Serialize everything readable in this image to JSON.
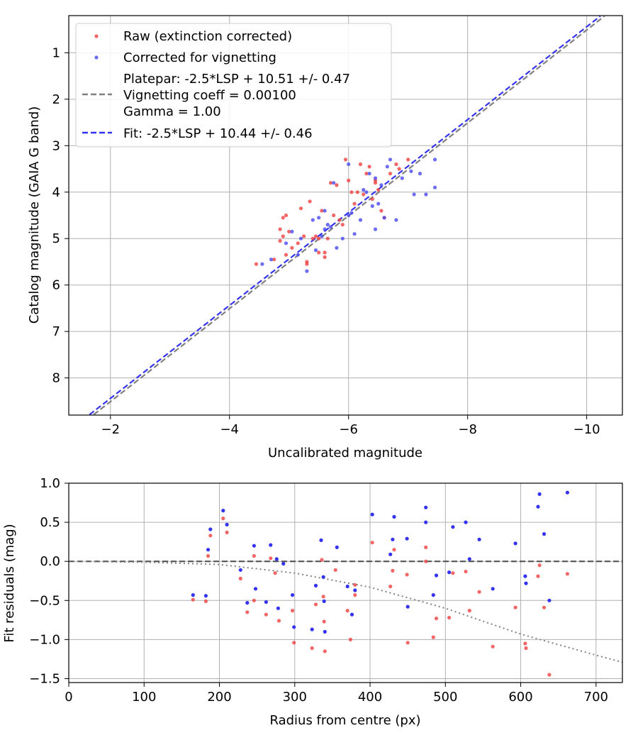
{
  "chart_data": [
    {
      "type": "scatter",
      "xlabel": "Uncalibrated magnitude",
      "ylabel": "Catalog magnitude (GAIA G band)",
      "xlim": [
        -1.3,
        -10.6
      ],
      "ylim": [
        8.8,
        0.2
      ],
      "x_inverted": true,
      "y_inverted": true,
      "grid": true,
      "legend_position": "top-left",
      "xticks": [
        -2,
        -4,
        -6,
        -8,
        -10
      ],
      "xtick_labels": [
        "−2",
        "−4",
        "−6",
        "−8",
        "−10"
      ],
      "yticks": [
        1,
        2,
        3,
        4,
        5,
        6,
        7,
        8
      ],
      "ytick_labels": [
        "1",
        "2",
        "3",
        "4",
        "5",
        "6",
        "7",
        "8"
      ],
      "legend": [
        {
          "label": "Raw (extinction corrected)",
          "kind": "marker",
          "color": "#ef4040"
        },
        {
          "label": "Corrected for vignetting",
          "kind": "marker",
          "color": "#4848ef"
        },
        {
          "label": "Platepar: -2.5*LSP + 10.51 +/- 0.47",
          "label2": "Vignetting coeff = 0.00100",
          "label3": "Gamma = 1.00",
          "kind": "dashed",
          "color": "#808080"
        },
        {
          "label": "Fit: -2.5*LSP + 10.44 +/- 0.46",
          "kind": "dashed",
          "color": "#3434ee"
        }
      ],
      "lines": [
        {
          "name": "Platepar",
          "color": "#808080",
          "slope_per_unit": -0.4,
          "intercept_mag": 10.51
        },
        {
          "name": "Fit",
          "color": "#3434ee",
          "slope_per_unit": -0.4,
          "intercept_mag": 10.44
        }
      ],
      "series": [
        {
          "name": "Raw (extinction corrected)",
          "color": "#ef4040",
          "points": [
            [
              -4.45,
              5.55
            ],
            [
              -4.75,
              5.45
            ],
            [
              -4.85,
              5.05
            ],
            [
              -4.9,
              4.95
            ],
            [
              -4.95,
              5.35
            ],
            [
              -4.85,
              4.8
            ],
            [
              -4.9,
              4.55
            ],
            [
              -4.95,
              4.5
            ],
            [
              -5.0,
              4.85
            ],
            [
              -5.05,
              5.2
            ],
            [
              -5.15,
              5.1
            ],
            [
              -5.2,
              4.35
            ],
            [
              -5.25,
              4.95
            ],
            [
              -5.3,
              5.5
            ],
            [
              -5.35,
              4.2
            ],
            [
              -5.4,
              5.0
            ],
            [
              -5.5,
              5.3
            ],
            [
              -5.55,
              4.4
            ],
            [
              -5.6,
              5.4
            ],
            [
              -5.65,
              5.0
            ],
            [
              -5.7,
              3.8
            ],
            [
              -5.75,
              4.5
            ],
            [
              -5.8,
              3.85
            ],
            [
              -5.85,
              4.6
            ],
            [
              -5.9,
              4.7
            ],
            [
              -5.95,
              3.3
            ],
            [
              -6.0,
              3.75
            ],
            [
              -6.05,
              4.0
            ],
            [
              -6.1,
              4.25
            ],
            [
              -6.2,
              3.4
            ],
            [
              -6.25,
              4.05
            ],
            [
              -6.3,
              3.6
            ],
            [
              -6.35,
              3.45
            ],
            [
              -6.4,
              4.15
            ],
            [
              -6.45,
              3.8
            ],
            [
              -6.5,
              3.95
            ],
            [
              -6.55,
              4.4
            ],
            [
              -6.6,
              4.55
            ],
            [
              -6.7,
              3.6
            ],
            [
              -6.8,
              3.4
            ],
            [
              -6.85,
              3.5
            ],
            [
              -7.0,
              3.3
            ],
            [
              -5.3,
              5.55
            ],
            [
              -5.45,
              4.95
            ],
            [
              -5.5,
              5.0
            ],
            [
              -5.6,
              5.3
            ],
            [
              -6.15,
              4.0
            ],
            [
              -6.45,
              3.75
            ]
          ]
        },
        {
          "name": "Corrected for vignetting",
          "color": "#4848ef",
          "points": [
            [
              -4.55,
              5.55
            ],
            [
              -4.7,
              5.45
            ],
            [
              -4.95,
              5.1
            ],
            [
              -5.05,
              4.85
            ],
            [
              -5.15,
              5.35
            ],
            [
              -5.2,
              5.0
            ],
            [
              -5.3,
              5.7
            ],
            [
              -5.4,
              4.6
            ],
            [
              -5.45,
              5.25
            ],
            [
              -5.55,
              4.95
            ],
            [
              -5.6,
              4.4
            ],
            [
              -5.65,
              4.7
            ],
            [
              -5.7,
              4.75
            ],
            [
              -5.75,
              3.8
            ],
            [
              -5.8,
              5.2
            ],
            [
              -5.9,
              5.0
            ],
            [
              -6.0,
              4.5
            ],
            [
              -6.05,
              4.45
            ],
            [
              -6.1,
              4.9
            ],
            [
              -6.2,
              4.6
            ],
            [
              -6.3,
              4.0
            ],
            [
              -6.35,
              3.6
            ],
            [
              -6.4,
              4.3
            ],
            [
              -6.45,
              3.7
            ],
            [
              -6.5,
              4.25
            ],
            [
              -6.55,
              3.85
            ],
            [
              -6.6,
              4.55
            ],
            [
              -6.65,
              3.45
            ],
            [
              -6.7,
              3.3
            ],
            [
              -6.8,
              4.6
            ],
            [
              -6.9,
              3.7
            ],
            [
              -7.05,
              3.55
            ],
            [
              -7.2,
              3.6
            ],
            [
              -7.3,
              4.05
            ],
            [
              -7.45,
              3.9
            ],
            [
              -7.45,
              3.3
            ],
            [
              -5.5,
              4.55
            ],
            [
              -5.6,
              4.8
            ],
            [
              -6.25,
              3.95
            ],
            [
              -6.45,
              4.8
            ],
            [
              -6.0,
              3.4
            ],
            [
              -7.1,
              4.05
            ]
          ]
        }
      ]
    },
    {
      "type": "scatter",
      "xlabel": "Radius from centre (px)",
      "ylabel": "Fit residuals (mag)",
      "xlim": [
        0,
        735
      ],
      "ylim": [
        -1.55,
        1.0
      ],
      "grid": true,
      "xticks": [
        0,
        100,
        200,
        300,
        400,
        500,
        600,
        700
      ],
      "xtick_labels": [
        "0",
        "100",
        "200",
        "300",
        "400",
        "500",
        "600",
        "700"
      ],
      "yticks": [
        1.0,
        0.5,
        0.0,
        -0.5,
        -1.0,
        -1.5
      ],
      "ytick_labels": [
        "1.0",
        "0.5",
        "0.0",
        "−0.5",
        "−1.0",
        "−1.5"
      ],
      "reference_lines": [
        {
          "name": "zero",
          "style": "dashed",
          "color": "#555555",
          "y": 0.0
        },
        {
          "name": "vignetting",
          "style": "dotted",
          "color": "#808080",
          "curve": [
            [
              0,
              0.0
            ],
            [
              100,
              -0.01
            ],
            [
              200,
              -0.04
            ],
            [
              300,
              -0.15
            ],
            [
              400,
              -0.33
            ],
            [
              500,
              -0.6
            ],
            [
              600,
              -0.93
            ],
            [
              700,
              -1.2
            ],
            [
              735,
              -1.29
            ]
          ]
        }
      ],
      "series": [
        {
          "name": "Raw",
          "color": "#ef4040",
          "points": [
            [
              165,
              -0.49
            ],
            [
              182,
              -0.51
            ],
            [
              185,
              0.07
            ],
            [
              188,
              0.33
            ],
            [
              205,
              0.55
            ],
            [
              210,
              0.37
            ],
            [
              228,
              -0.22
            ],
            [
              237,
              -0.65
            ],
            [
              246,
              0.07
            ],
            [
              246,
              -0.5
            ],
            [
              262,
              -0.68
            ],
            [
              268,
              0.04
            ],
            [
              274,
              -0.15
            ],
            [
              279,
              -0.76
            ],
            [
              297,
              -0.63
            ],
            [
              299,
              -1.04
            ],
            [
              323,
              -1.11
            ],
            [
              328,
              -0.55
            ],
            [
              336,
              0.02
            ],
            [
              338,
              -0.45
            ],
            [
              339,
              -0.77
            ],
            [
              340,
              -1.15
            ],
            [
              354,
              -0.11
            ],
            [
              370,
              -0.63
            ],
            [
              374,
              -1.0
            ],
            [
              380,
              -0.3
            ],
            [
              380,
              -0.43
            ],
            [
              403,
              0.24
            ],
            [
              427,
              -0.32
            ],
            [
              430,
              -0.12
            ],
            [
              432,
              0.15
            ],
            [
              449,
              -0.17
            ],
            [
              450,
              -1.04
            ],
            [
              474,
              0.18
            ],
            [
              474,
              0.0
            ],
            [
              484,
              -0.97
            ],
            [
              488,
              -0.73
            ],
            [
              505,
              -0.72
            ],
            [
              510,
              -0.15
            ],
            [
              527,
              -0.13
            ],
            [
              532,
              -0.63
            ],
            [
              545,
              -0.39
            ],
            [
              563,
              -1.09
            ],
            [
              593,
              -0.59
            ],
            [
              606,
              -1.05
            ],
            [
              607,
              -1.11
            ],
            [
              623,
              -0.19
            ],
            [
              625,
              -0.05
            ],
            [
              631,
              -0.59
            ],
            [
              638,
              -1.45
            ],
            [
              662,
              -0.16
            ]
          ]
        },
        {
          "name": "Corrected",
          "color": "#3434ee",
          "points": [
            [
              165,
              -0.43
            ],
            [
              182,
              -0.44
            ],
            [
              185,
              0.15
            ],
            [
              188,
              0.41
            ],
            [
              205,
              0.65
            ],
            [
              210,
              0.47
            ],
            [
              228,
              -0.11
            ],
            [
              237,
              -0.53
            ],
            [
              246,
              0.2
            ],
            [
              248,
              -0.35
            ],
            [
              262,
              -0.52
            ],
            [
              268,
              0.21
            ],
            [
              276,
              0.03
            ],
            [
              278,
              -0.6
            ],
            [
              285,
              -0.03
            ],
            [
              297,
              -0.43
            ],
            [
              299,
              -0.84
            ],
            [
              323,
              -0.87
            ],
            [
              328,
              -0.31
            ],
            [
              335,
              0.27
            ],
            [
              338,
              -0.2
            ],
            [
              339,
              -0.51
            ],
            [
              340,
              -0.9
            ],
            [
              356,
              0.18
            ],
            [
              370,
              -0.32
            ],
            [
              376,
              -0.68
            ],
            [
              380,
              -0.37
            ],
            [
              403,
              0.6
            ],
            [
              427,
              0.09
            ],
            [
              430,
              0.28
            ],
            [
              432,
              0.57
            ],
            [
              449,
              0.29
            ],
            [
              450,
              -0.58
            ],
            [
              474,
              0.69
            ],
            [
              474,
              0.5
            ],
            [
              484,
              -0.43
            ],
            [
              488,
              -0.18
            ],
            [
              505,
              -0.14
            ],
            [
              510,
              0.44
            ],
            [
              527,
              0.5
            ],
            [
              532,
              0.03
            ],
            [
              545,
              0.28
            ],
            [
              563,
              -0.35
            ],
            [
              593,
              0.23
            ],
            [
              606,
              -0.19
            ],
            [
              607,
              -0.28
            ],
            [
              623,
              0.7
            ],
            [
              625,
              0.86
            ],
            [
              631,
              0.35
            ],
            [
              638,
              -0.5
            ],
            [
              662,
              0.88
            ]
          ]
        }
      ]
    }
  ]
}
